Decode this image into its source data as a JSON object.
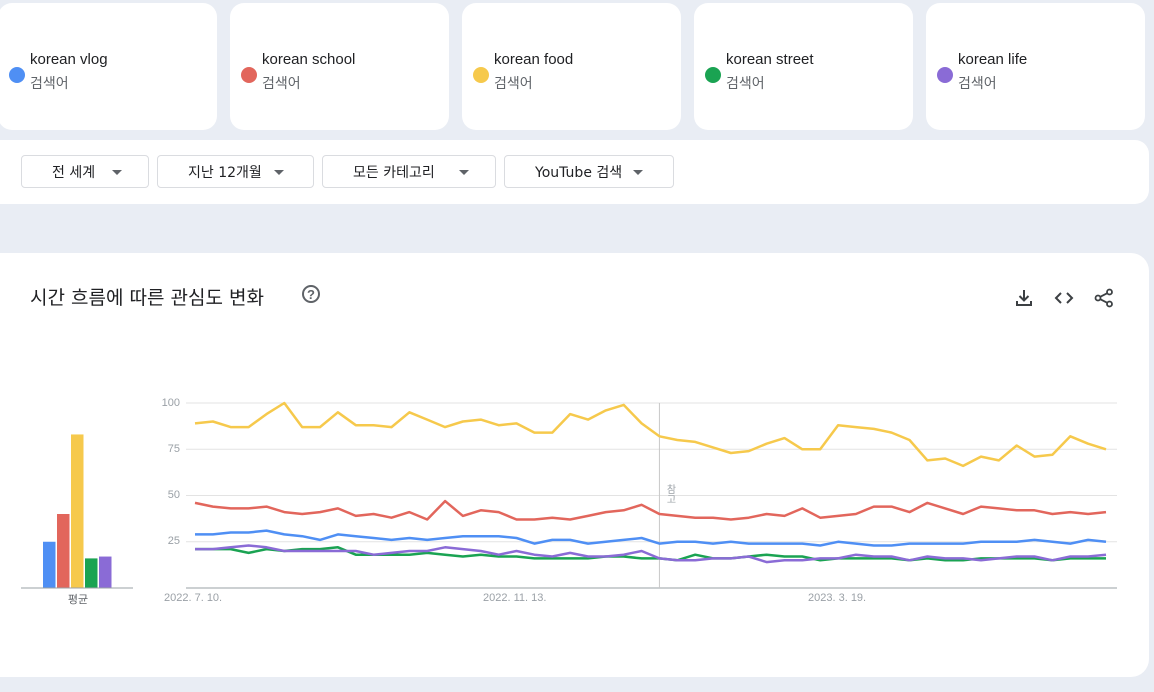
{
  "terms": [
    {
      "name": "korean vlog",
      "subtitle": "검색어",
      "color": "#4f8ff4"
    },
    {
      "name": "korean school",
      "subtitle": "검색어",
      "color": "#e2665c"
    },
    {
      "name": "korean food",
      "subtitle": "검색어",
      "color": "#f6c94c"
    },
    {
      "name": "korean street",
      "subtitle": "검색어",
      "color": "#1aa352"
    },
    {
      "name": "korean life",
      "subtitle": "검색어",
      "color": "#8a6bd6"
    }
  ],
  "filters": [
    {
      "label": "전 세계"
    },
    {
      "label": "지난 12개월"
    },
    {
      "label": "모든 카테고리"
    },
    {
      "label": "YouTube 검색"
    }
  ],
  "panel": {
    "title": "시간 흐름에 따른 관심도 변화",
    "help_glyph": "?",
    "average_label": "평균",
    "note_label": "참고"
  },
  "icons": [
    "download-icon",
    "embed-code-icon",
    "share-icon",
    "help-icon"
  ],
  "chart_data": {
    "type": "line",
    "title": "시간 흐름에 따른 관심도 변화",
    "ylim": [
      0,
      100
    ],
    "y_ticks": [
      100,
      75,
      50,
      25
    ],
    "x_tick_labels": [
      {
        "label": "2022. 7. 10.",
        "index": 0
      },
      {
        "label": "2022. 11. 13.",
        "index": 18
      },
      {
        "label": "2023. 3. 19.",
        "index": 36
      }
    ],
    "note_index": 26,
    "averages": [
      {
        "name": "korean vlog",
        "value": 25
      },
      {
        "name": "korean school",
        "value": 40
      },
      {
        "name": "korean food",
        "value": 83
      },
      {
        "name": "korean street",
        "value": 16
      },
      {
        "name": "korean life",
        "value": 17
      }
    ],
    "series": [
      {
        "name": "korean food",
        "color": "#f6c94c",
        "values": [
          89,
          90,
          87,
          87,
          94,
          100,
          87,
          87,
          95,
          88,
          88,
          87,
          95,
          91,
          87,
          90,
          91,
          88,
          89,
          84,
          84,
          94,
          91,
          96,
          99,
          89,
          82,
          80,
          79,
          76,
          73,
          74,
          78,
          81,
          75,
          75,
          88,
          87,
          86,
          84,
          80,
          69,
          70,
          66,
          71,
          69,
          77,
          71,
          72,
          82,
          78,
          75
        ]
      },
      {
        "name": "korean school",
        "color": "#e2665c",
        "values": [
          46,
          44,
          43,
          43,
          44,
          41,
          40,
          41,
          43,
          39,
          40,
          38,
          41,
          37,
          47,
          39,
          42,
          41,
          37,
          37,
          38,
          37,
          39,
          41,
          42,
          45,
          40,
          39,
          38,
          38,
          37,
          38,
          40,
          39,
          43,
          38,
          39,
          40,
          44,
          44,
          41,
          46,
          43,
          40,
          44,
          43,
          42,
          42,
          40,
          41,
          40,
          41
        ]
      },
      {
        "name": "korean vlog",
        "color": "#4f8ff4",
        "values": [
          29,
          29,
          30,
          30,
          31,
          29,
          28,
          26,
          29,
          28,
          27,
          26,
          27,
          26,
          27,
          28,
          28,
          28,
          27,
          24,
          26,
          26,
          24,
          25,
          26,
          27,
          24,
          25,
          25,
          24,
          25,
          24,
          24,
          24,
          24,
          23,
          25,
          24,
          23,
          23,
          24,
          24,
          24,
          24,
          25,
          25,
          25,
          26,
          25,
          24,
          26,
          25
        ]
      },
      {
        "name": "korean street",
        "color": "#1aa352",
        "values": [
          21,
          21,
          21,
          19,
          21,
          20,
          21,
          21,
          22,
          18,
          18,
          18,
          18,
          19,
          18,
          17,
          18,
          17,
          17,
          16,
          16,
          16,
          16,
          17,
          17,
          16,
          16,
          15,
          18,
          16,
          16,
          17,
          18,
          17,
          17,
          15,
          16,
          16,
          16,
          16,
          15,
          16,
          15,
          15,
          16,
          16,
          16,
          16,
          15,
          16,
          16,
          16
        ]
      },
      {
        "name": "korean life",
        "color": "#8a6bd6",
        "values": [
          21,
          21,
          22,
          23,
          22,
          20,
          20,
          20,
          20,
          20,
          18,
          19,
          20,
          20,
          22,
          21,
          20,
          18,
          20,
          18,
          17,
          19,
          17,
          17,
          18,
          20,
          16,
          15,
          15,
          16,
          16,
          17,
          14,
          15,
          15,
          16,
          16,
          18,
          17,
          17,
          15,
          17,
          16,
          16,
          15,
          16,
          17,
          17,
          15,
          17,
          17,
          18
        ]
      }
    ]
  }
}
